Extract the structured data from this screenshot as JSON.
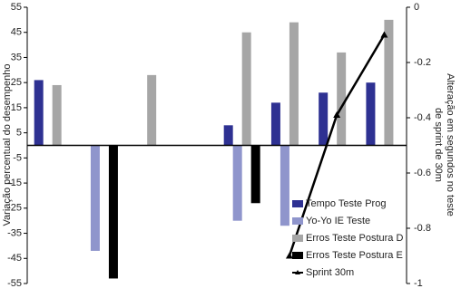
{
  "chart_data": {
    "type": "bar",
    "ylabel": "Variação percentual do desempenho",
    "y2label": "Alteração em segundos no teste de sprint de 30m",
    "categories": [
      null,
      null,
      null,
      null,
      null,
      null,
      null,
      null
    ],
    "series": [
      {
        "name": "Tempo Teste Prog",
        "color": "#2e3192",
        "values": [
          26,
          null,
          null,
          null,
          8,
          17,
          21,
          25
        ]
      },
      {
        "name": "Yo-Yo IE Teste",
        "color": "#8f95cc",
        "values": [
          null,
          -42,
          null,
          null,
          -30,
          -32,
          null,
          null
        ]
      },
      {
        "name": "Erros Teste Postura D",
        "color": "#a6a6a6",
        "values": [
          24,
          null,
          28,
          null,
          45,
          49,
          37,
          50
        ]
      },
      {
        "name": "Erros Teste Postura E",
        "color": "#000000",
        "values": [
          null,
          -53,
          null,
          null,
          -23,
          null,
          null,
          null
        ]
      },
      {
        "name": "Sprint 30m",
        "color": "#000000",
        "type": "line",
        "axis": "y2",
        "values": [
          null,
          null,
          null,
          null,
          null,
          -0.9,
          -0.39,
          -0.1
        ]
      }
    ],
    "ylim": [
      -55,
      55
    ],
    "yticks": [
      55,
      45,
      35,
      25,
      15,
      5,
      -5,
      -15,
      -25,
      -35,
      -45,
      -55
    ],
    "y2lim": [
      -1,
      0
    ],
    "y2ticks": [
      0,
      -0.2,
      -0.4,
      -0.6,
      -0.8,
      -1
    ]
  }
}
